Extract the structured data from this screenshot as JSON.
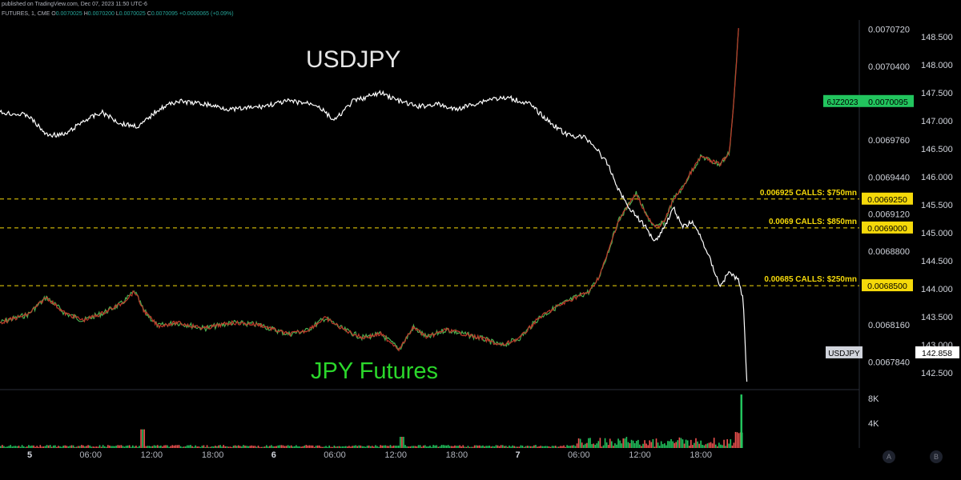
{
  "header": {
    "line1": "published on TradingView.com, Dec 07, 2023 11:50 UTC-6",
    "line2_prefix": "FUTURES, 1, CME",
    "ohlc": [
      {
        "k": "O",
        "v": "0.0070025"
      },
      {
        "k": "H",
        "v": "0.0070200"
      },
      {
        "k": "L",
        "v": "0.0070025"
      },
      {
        "k": "C",
        "v": "0.0070095"
      }
    ],
    "change": "+0.0000065 (+0.09%)"
  },
  "titles": {
    "usdjpy": "USDJPY",
    "futures": "JPY Futures"
  },
  "colors": {
    "background": "#000000",
    "usdjpy_line": "#ffffff",
    "futures_up": "#26a69a",
    "futures_down": "#ef5350",
    "level_line": "#f5d90a",
    "futures_tag": "#22c55e",
    "usdjpy_tag": "#d1d4dc",
    "vol_up": "#22c55e",
    "vol_down": "#ef5350"
  },
  "chart_data": {
    "type": "line",
    "x_ticks": [
      "5",
      "06:00",
      "12:00",
      "18:00",
      "6",
      "06:00",
      "12:00",
      "18:00",
      "7",
      "06:00",
      "12:00",
      "18:00"
    ],
    "futures_axis": {
      "ticks": [
        "0.0070720",
        "0.0070400",
        "0.0069760",
        "0.0069440",
        "0.0069120",
        "0.0068800",
        "0.0068160",
        "0.0067840"
      ],
      "range": [
        0.00676,
        0.00708
      ]
    },
    "usdjpy_axis": {
      "ticks": [
        "148.500",
        "148.000",
        "147.500",
        "147.000",
        "146.500",
        "146.000",
        "145.500",
        "145.000",
        "144.500",
        "144.000",
        "143.500",
        "143.000",
        "142.500"
      ],
      "range": [
        142.2,
        148.8
      ]
    },
    "volume_axis": {
      "ticks": [
        "8K",
        "4K"
      ],
      "range": [
        0,
        9000
      ]
    },
    "levels": [
      {
        "label": "0.006925 CALLS: $750mn",
        "price": "0.0069250"
      },
      {
        "label": "0.0069 CALLS: $850mn",
        "price": "0.0069000"
      },
      {
        "label": "0.00685 CALLS: $250mn",
        "price": "0.0068500"
      }
    ],
    "series": [
      {
        "name": "USDJPY",
        "last": "142.858",
        "points": [
          [
            0,
            147.15
          ],
          [
            0.03,
            147.1
          ],
          [
            0.05,
            146.75
          ],
          [
            0.07,
            146.75
          ],
          [
            0.09,
            147.0
          ],
          [
            0.11,
            147.15
          ],
          [
            0.13,
            146.95
          ],
          [
            0.15,
            146.9
          ],
          [
            0.17,
            147.2
          ],
          [
            0.19,
            147.35
          ],
          [
            0.22,
            147.3
          ],
          [
            0.25,
            147.2
          ],
          [
            0.28,
            147.25
          ],
          [
            0.31,
            147.35
          ],
          [
            0.34,
            147.3
          ],
          [
            0.36,
            147.0
          ],
          [
            0.38,
            147.35
          ],
          [
            0.41,
            147.5
          ],
          [
            0.43,
            147.35
          ],
          [
            0.45,
            147.25
          ],
          [
            0.47,
            147.3
          ],
          [
            0.49,
            147.2
          ],
          [
            0.51,
            147.3
          ],
          [
            0.53,
            147.4
          ],
          [
            0.55,
            147.4
          ],
          [
            0.57,
            147.3
          ],
          [
            0.59,
            147.0
          ],
          [
            0.61,
            146.75
          ],
          [
            0.63,
            146.7
          ],
          [
            0.64,
            146.55
          ],
          [
            0.655,
            146.2
          ],
          [
            0.665,
            145.8
          ],
          [
            0.675,
            145.5
          ],
          [
            0.685,
            145.3
          ],
          [
            0.695,
            145.1
          ],
          [
            0.705,
            144.85
          ],
          [
            0.715,
            145.1
          ],
          [
            0.725,
            145.45
          ],
          [
            0.735,
            145.1
          ],
          [
            0.745,
            145.2
          ],
          [
            0.755,
            144.9
          ],
          [
            0.765,
            144.5
          ],
          [
            0.775,
            144.05
          ],
          [
            0.785,
            144.3
          ],
          [
            0.795,
            144.15
          ],
          [
            0.8,
            143.8
          ],
          [
            0.804,
            142.35
          ]
        ]
      },
      {
        "name": "6JZ2023",
        "last": "0.0070095",
        "points": [
          [
            0,
            0.006818
          ],
          [
            0.03,
            0.006825
          ],
          [
            0.05,
            0.00684
          ],
          [
            0.07,
            0.006826
          ],
          [
            0.09,
            0.00682
          ],
          [
            0.11,
            0.006826
          ],
          [
            0.13,
            0.006834
          ],
          [
            0.145,
            0.006845
          ],
          [
            0.155,
            0.006828
          ],
          [
            0.17,
            0.006815
          ],
          [
            0.19,
            0.006818
          ],
          [
            0.22,
            0.006813
          ],
          [
            0.25,
            0.006818
          ],
          [
            0.28,
            0.006816
          ],
          [
            0.31,
            0.006808
          ],
          [
            0.33,
            0.006811
          ],
          [
            0.35,
            0.006822
          ],
          [
            0.37,
            0.006812
          ],
          [
            0.39,
            0.006805
          ],
          [
            0.41,
            0.006808
          ],
          [
            0.43,
            0.006795
          ],
          [
            0.445,
            0.006814
          ],
          [
            0.46,
            0.006805
          ],
          [
            0.48,
            0.006812
          ],
          [
            0.5,
            0.006808
          ],
          [
            0.52,
            0.006804
          ],
          [
            0.54,
            0.006798
          ],
          [
            0.56,
            0.006805
          ],
          [
            0.58,
            0.006822
          ],
          [
            0.6,
            0.006832
          ],
          [
            0.62,
            0.00684
          ],
          [
            0.635,
            0.006845
          ],
          [
            0.645,
            0.006858
          ],
          [
            0.655,
            0.00688
          ],
          [
            0.665,
            0.006905
          ],
          [
            0.675,
            0.006918
          ],
          [
            0.685,
            0.00693
          ],
          [
            0.695,
            0.006912
          ],
          [
            0.705,
            0.0069
          ],
          [
            0.715,
            0.006905
          ],
          [
            0.725,
            0.006925
          ],
          [
            0.735,
            0.006935
          ],
          [
            0.745,
            0.00695
          ],
          [
            0.755,
            0.006962
          ],
          [
            0.765,
            0.006958
          ],
          [
            0.775,
            0.006955
          ],
          [
            0.785,
            0.006965
          ],
          [
            0.79,
            0.00701
          ],
          [
            0.795,
            0.007072
          ]
        ]
      }
    ]
  },
  "tags": {
    "futures_symbol": "6JZ2023",
    "futures_price": "0.0070095",
    "usdjpy_symbol": "USDJPY",
    "usdjpy_price": "142.858"
  },
  "buttons": {
    "a": "A",
    "b": "B"
  }
}
